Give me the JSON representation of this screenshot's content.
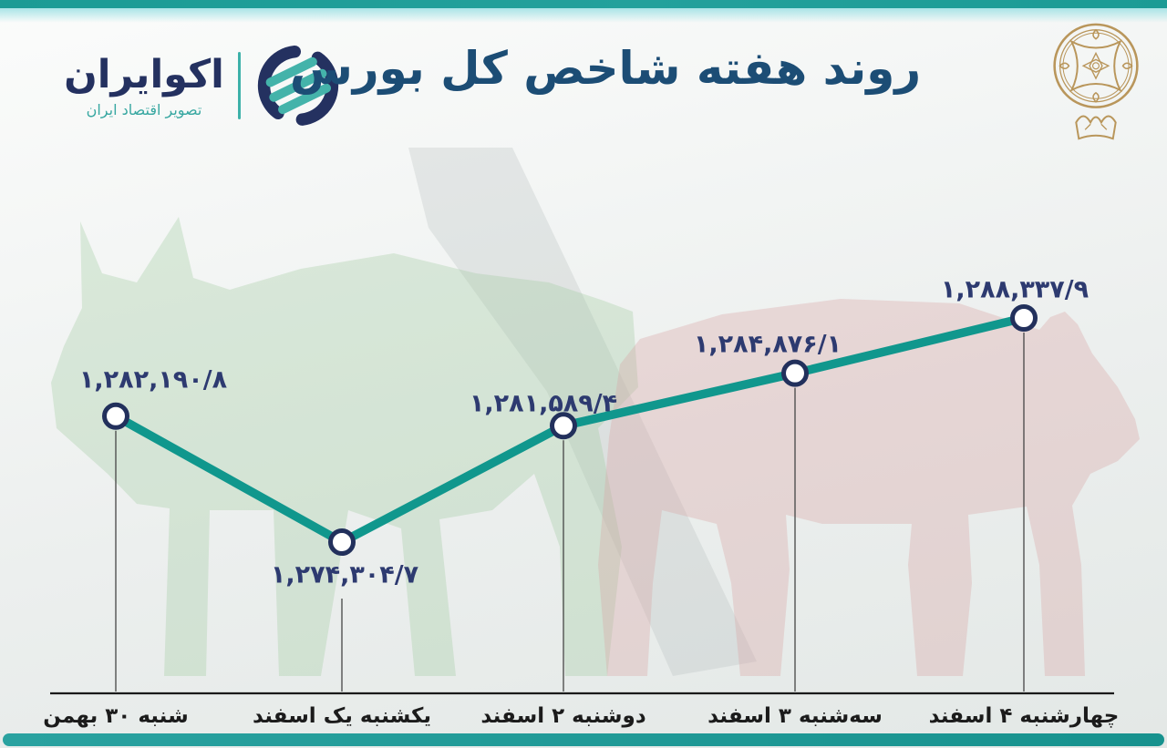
{
  "header": {
    "logo": {
      "name": "اکوایران",
      "tagline": "تصویر اقتصاد ایران"
    },
    "title": "روند هفته شاخص کل بورس",
    "emblem_icon": "stock-exchange-gold-emblem"
  },
  "colors": {
    "accent_teal": "#10978d",
    "logo_navy": "#243160",
    "logo_teal": "#44b3aa",
    "title_blue": "#1c4d75",
    "value_label_navy": "#2d3a70",
    "axis_black": "#1a1a1a",
    "emblem_gold": "#b9965b",
    "bull_green": "#a5cda5",
    "bear_red": "#dcaaaa",
    "top_bar_teal": "#1b9b95",
    "bottom_bar_teal": "#1f9a97"
  },
  "chart_data": {
    "type": "line",
    "title": "روند هفته شاخص کل بورس",
    "categories": [
      "شنبه ۳۰ بهمن",
      "یکشنبه یک اسفند",
      "دوشنبه ۲ اسفند",
      "سه‌شنبه ۳ اسفند",
      "چهارشنبه ۴ اسفند"
    ],
    "values": [
      1282190.8,
      1274304.7,
      1281589.4,
      1284876.1,
      1288337.9
    ],
    "value_labels": [
      "۱,۲۸۲,۱۹۰/۸",
      "۱,۲۷۴,۳۰۴/۷",
      "۱,۲۸۱,۵۸۹/۴",
      "۱,۲۸۴,۸۷۶/۱",
      "۱,۲۸۸,۳۳۷/۹"
    ],
    "ylim": [
      1272000,
      1290000
    ],
    "grid": false,
    "legend": false,
    "xlabel": "",
    "ylabel": "",
    "line_color": "#10978d",
    "marker_fill": "#ffffff",
    "marker_stroke": "#22305c"
  }
}
